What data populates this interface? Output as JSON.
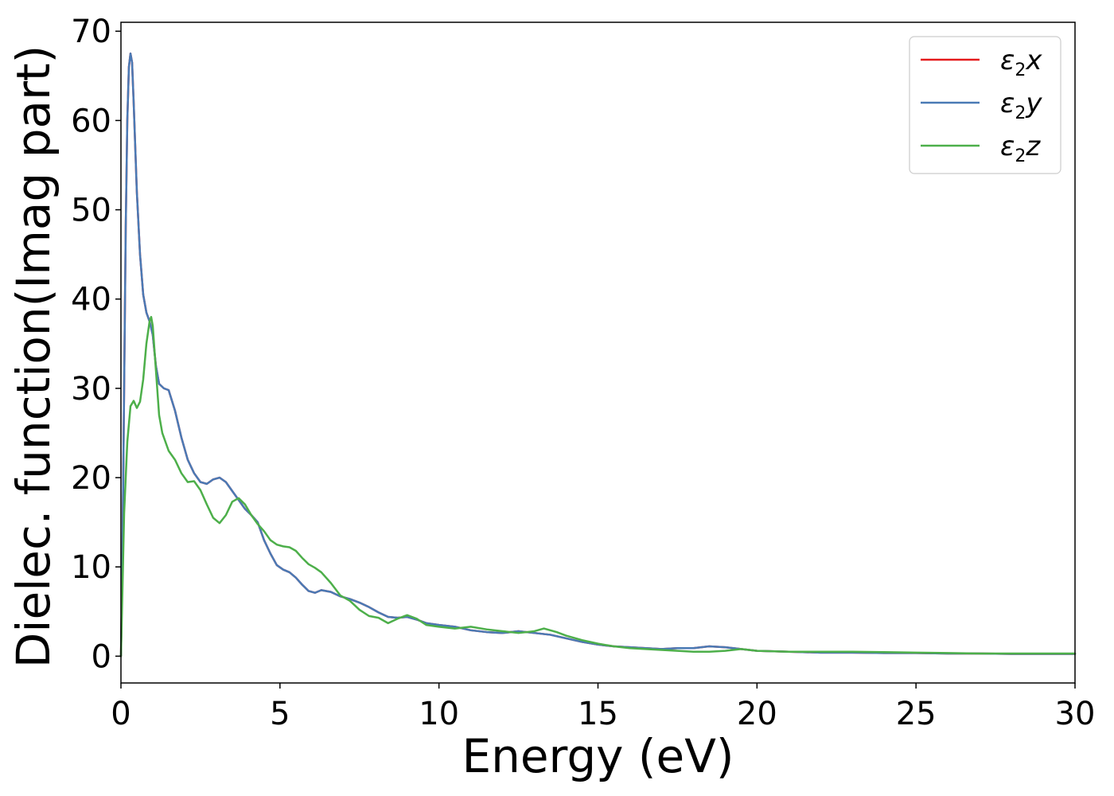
{
  "chart_data": {
    "type": "line",
    "xlabel": "Energy (eV)",
    "ylabel": "Dielec. function(Imag part)",
    "xlim": [
      0,
      30
    ],
    "ylim": [
      -3,
      71
    ],
    "xticks": [
      0,
      5,
      10,
      15,
      20,
      25,
      30
    ],
    "yticks": [
      0,
      10,
      20,
      30,
      40,
      50,
      60,
      70
    ],
    "grid": false,
    "legend_position": "top-right",
    "series": [
      {
        "name": "ε2x",
        "legend_base": "ε",
        "legend_sub": "2",
        "legend_var": "x",
        "color": "#e41a1c",
        "x": [
          0,
          0.05,
          0.1,
          0.15,
          0.2,
          0.25,
          0.3,
          0.35,
          0.4,
          0.5,
          0.6,
          0.7,
          0.8,
          0.9,
          1.0,
          1.1,
          1.2,
          1.35,
          1.5,
          1.7,
          1.9,
          2.1,
          2.3,
          2.5,
          2.7,
          2.9,
          3.1,
          3.3,
          3.5,
          3.7,
          3.9,
          4.1,
          4.3,
          4.5,
          4.7,
          4.9,
          5.1,
          5.3,
          5.5,
          5.7,
          5.9,
          6.1,
          6.3,
          6.6,
          6.9,
          7.2,
          7.5,
          7.8,
          8.1,
          8.4,
          8.7,
          9.0,
          9.3,
          9.6,
          10.0,
          10.5,
          11.0,
          11.5,
          12.0,
          12.5,
          13.0,
          13.5,
          14.0,
          14.5,
          15.0,
          15.5,
          16.0,
          16.5,
          17.0,
          17.5,
          18.0,
          18.5,
          19.0,
          19.5,
          20.0,
          21.0,
          22.0,
          23.0,
          24.0,
          25.0,
          26.0,
          27.0,
          28.0,
          29.0,
          30.0
        ],
        "y": [
          0,
          12,
          30,
          48,
          60,
          66,
          67.5,
          66.5,
          62,
          52,
          45,
          40.5,
          38.5,
          37.5,
          36,
          32.5,
          30.5,
          30,
          29.8,
          27.5,
          24.5,
          22,
          20.5,
          19.5,
          19.3,
          19.8,
          20,
          19.5,
          18.5,
          17.5,
          16.5,
          15.8,
          15,
          13,
          11.5,
          10.2,
          9.7,
          9.4,
          8.8,
          8,
          7.3,
          7.1,
          7.4,
          7.2,
          6.7,
          6.4,
          6,
          5.5,
          4.9,
          4.4,
          4.3,
          4.4,
          4.1,
          3.7,
          3.5,
          3.3,
          2.9,
          2.7,
          2.6,
          2.8,
          2.6,
          2.4,
          2.0,
          1.6,
          1.3,
          1.1,
          1.0,
          0.9,
          0.8,
          0.9,
          0.9,
          1.1,
          1.0,
          0.8,
          0.6,
          0.5,
          0.4,
          0.4,
          0.35,
          0.35,
          0.3,
          0.3,
          0.25,
          0.25,
          0.25
        ]
      },
      {
        "name": "ε2y",
        "legend_base": "ε",
        "legend_sub": "2",
        "legend_var": "y",
        "color": "#4a7ab5",
        "x": [
          0,
          0.05,
          0.1,
          0.15,
          0.2,
          0.25,
          0.3,
          0.35,
          0.4,
          0.5,
          0.6,
          0.7,
          0.8,
          0.9,
          1.0,
          1.1,
          1.2,
          1.35,
          1.5,
          1.7,
          1.9,
          2.1,
          2.3,
          2.5,
          2.7,
          2.9,
          3.1,
          3.3,
          3.5,
          3.7,
          3.9,
          4.1,
          4.3,
          4.5,
          4.7,
          4.9,
          5.1,
          5.3,
          5.5,
          5.7,
          5.9,
          6.1,
          6.3,
          6.6,
          6.9,
          7.2,
          7.5,
          7.8,
          8.1,
          8.4,
          8.7,
          9.0,
          9.3,
          9.6,
          10.0,
          10.5,
          11.0,
          11.5,
          12.0,
          12.5,
          13.0,
          13.5,
          14.0,
          14.5,
          15.0,
          15.5,
          16.0,
          16.5,
          17.0,
          17.5,
          18.0,
          18.5,
          19.0,
          19.5,
          20.0,
          21.0,
          22.0,
          23.0,
          24.0,
          25.0,
          26.0,
          27.0,
          28.0,
          29.0,
          30.0
        ],
        "y": [
          0,
          12,
          30,
          48,
          60,
          66,
          67.5,
          66.5,
          62,
          52,
          45,
          40.5,
          38.5,
          37.5,
          36,
          32.5,
          30.5,
          30,
          29.8,
          27.5,
          24.5,
          22,
          20.5,
          19.5,
          19.3,
          19.8,
          20,
          19.5,
          18.5,
          17.5,
          16.5,
          15.8,
          15,
          13,
          11.5,
          10.2,
          9.7,
          9.4,
          8.8,
          8,
          7.3,
          7.1,
          7.4,
          7.2,
          6.7,
          6.4,
          6,
          5.5,
          4.9,
          4.4,
          4.3,
          4.4,
          4.1,
          3.7,
          3.5,
          3.3,
          2.9,
          2.7,
          2.6,
          2.8,
          2.6,
          2.4,
          2.0,
          1.6,
          1.3,
          1.1,
          1.0,
          0.9,
          0.8,
          0.9,
          0.9,
          1.1,
          1.0,
          0.8,
          0.6,
          0.5,
          0.4,
          0.4,
          0.35,
          0.35,
          0.3,
          0.3,
          0.25,
          0.25,
          0.25
        ]
      },
      {
        "name": "ε2z",
        "legend_base": "ε",
        "legend_sub": "2",
        "legend_var": "z",
        "color": "#4daf4a",
        "x": [
          0,
          0.05,
          0.1,
          0.2,
          0.3,
          0.4,
          0.5,
          0.6,
          0.7,
          0.8,
          0.9,
          0.95,
          1.0,
          1.1,
          1.2,
          1.3,
          1.5,
          1.7,
          1.9,
          2.1,
          2.3,
          2.5,
          2.7,
          2.9,
          3.1,
          3.3,
          3.5,
          3.7,
          3.9,
          4.1,
          4.3,
          4.5,
          4.7,
          4.9,
          5.1,
          5.3,
          5.5,
          5.7,
          5.9,
          6.1,
          6.3,
          6.6,
          6.9,
          7.2,
          7.5,
          7.8,
          8.1,
          8.4,
          8.7,
          9.0,
          9.3,
          9.6,
          10.0,
          10.5,
          11.0,
          11.5,
          12.0,
          12.5,
          13.0,
          13.3,
          13.7,
          14.0,
          14.5,
          15.0,
          15.5,
          16.0,
          16.5,
          17.0,
          17.5,
          18.0,
          18.5,
          19.0,
          19.5,
          20.0,
          21.0,
          22.0,
          23.0,
          24.0,
          25.0,
          26.0,
          27.0,
          28.0,
          29.0,
          30.0
        ],
        "y": [
          0,
          8,
          16,
          24,
          28,
          28.6,
          27.8,
          28.5,
          31,
          35,
          37.5,
          38,
          37,
          32,
          27,
          25,
          23,
          22,
          20.5,
          19.5,
          19.6,
          18.6,
          17,
          15.5,
          14.9,
          15.8,
          17.3,
          17.7,
          17,
          15.8,
          14.8,
          14,
          13,
          12.5,
          12.3,
          12.2,
          11.8,
          11,
          10.3,
          9.9,
          9.4,
          8.2,
          6.8,
          6.2,
          5.2,
          4.5,
          4.3,
          3.7,
          4.2,
          4.6,
          4.2,
          3.5,
          3.3,
          3.1,
          3.3,
          3.0,
          2.8,
          2.6,
          2.8,
          3.1,
          2.7,
          2.3,
          1.8,
          1.4,
          1.1,
          0.9,
          0.8,
          0.7,
          0.6,
          0.5,
          0.5,
          0.6,
          0.8,
          0.6,
          0.5,
          0.5,
          0.5,
          0.45,
          0.4,
          0.35,
          0.3,
          0.3,
          0.3,
          0.3
        ]
      }
    ]
  }
}
